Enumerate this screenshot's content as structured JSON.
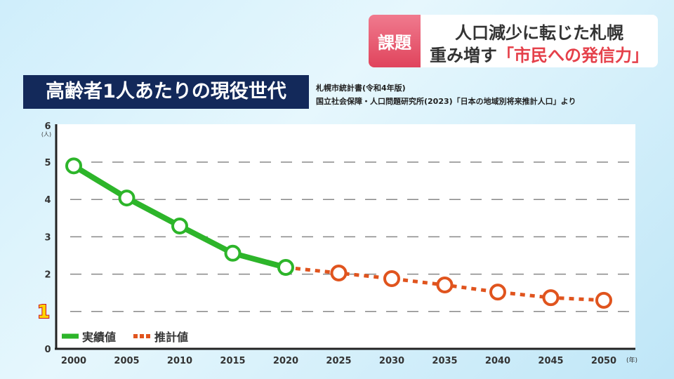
{
  "banner": {
    "tag": "課題",
    "line1": "人口減少に転じた札幌",
    "line2_prefix": "重み増す",
    "line2_highlight": "「市民への発信力」",
    "tag_color": "#e5506a"
  },
  "title": "高齢者1人あたりの現役世代",
  "sources": [
    "札幌市統計書(令和4年版)",
    "国立社会保障・人口問題研究所(2023)「日本の地域別将来推計人口」より"
  ],
  "chart_data": {
    "type": "line",
    "x": [
      2000,
      2005,
      2010,
      2015,
      2020,
      2025,
      2030,
      2035,
      2040,
      2045,
      2050
    ],
    "series": [
      {
        "name": "実績値",
        "x": [
          2000,
          2005,
          2010,
          2015,
          2020
        ],
        "values": [
          4.9,
          4.04,
          3.29,
          2.56,
          2.18
        ],
        "color": "#2db52a",
        "style": "solid"
      },
      {
        "name": "推計値",
        "x": [
          2020,
          2025,
          2030,
          2035,
          2040,
          2045,
          2050
        ],
        "values": [
          2.18,
          2.03,
          1.88,
          1.71,
          1.52,
          1.37,
          1.3
        ],
        "color": "#e0541e",
        "style": "dotted"
      }
    ],
    "ylim": [
      0,
      6
    ],
    "yticks": [
      "0",
      "1",
      "2",
      "3",
      "4",
      "5",
      "6"
    ],
    "highlight_ytick": "1",
    "yunit": "(人)",
    "xunit": "(年)",
    "grid": true,
    "legend": "bottom-left"
  }
}
